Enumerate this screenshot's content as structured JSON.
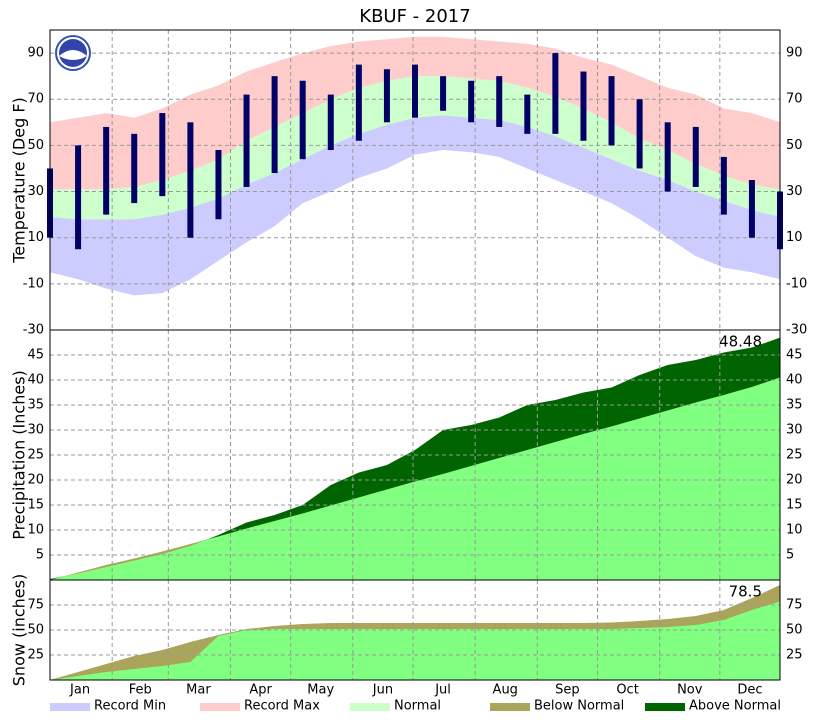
{
  "chart_data": [
    {
      "type": "range",
      "title": "KBUF - 2017",
      "ylabel": "Temperature (Deg F)",
      "x": [
        1,
        15,
        29,
        43,
        57,
        71,
        85,
        99,
        113,
        127,
        141,
        155,
        169,
        183,
        197,
        211,
        225,
        239,
        253,
        267,
        281,
        295,
        309,
        323,
        337,
        351,
        365
      ],
      "xlim": [
        1,
        365
      ],
      "x_gridlines": [
        32,
        60,
        91,
        121,
        152,
        182,
        213,
        244,
        274,
        305,
        335
      ],
      "record_max": [
        60,
        62,
        64,
        62,
        66,
        72,
        76,
        82,
        86,
        90,
        93,
        95,
        96,
        97,
        97,
        96,
        95,
        94,
        92,
        88,
        85,
        80,
        75,
        72,
        66,
        64,
        60
      ],
      "normal_high": [
        31,
        31,
        31,
        32,
        35,
        39,
        44,
        52,
        58,
        64,
        70,
        75,
        78,
        80,
        80,
        79,
        78,
        75,
        71,
        66,
        60,
        53,
        48,
        42,
        37,
        33,
        31
      ],
      "normal_low": [
        19,
        18,
        18,
        18,
        20,
        23,
        27,
        33,
        38,
        44,
        50,
        55,
        59,
        62,
        63,
        62,
        61,
        58,
        54,
        49,
        44,
        39,
        35,
        30,
        26,
        22,
        19
      ],
      "record_min": [
        -5,
        -8,
        -12,
        -15,
        -14,
        -8,
        0,
        8,
        15,
        25,
        30,
        36,
        40,
        46,
        48,
        47,
        45,
        40,
        35,
        30,
        25,
        18,
        10,
        2,
        -3,
        -5,
        -8
      ],
      "observed_high": [
        40,
        50,
        58,
        55,
        64,
        60,
        48,
        72,
        80,
        78,
        72,
        85,
        83,
        85,
        80,
        78,
        80,
        72,
        90,
        82,
        80,
        70,
        60,
        58,
        45,
        35,
        30
      ],
      "observed_low": [
        10,
        5,
        20,
        25,
        28,
        10,
        18,
        32,
        38,
        44,
        48,
        52,
        60,
        62,
        65,
        60,
        58,
        55,
        55,
        52,
        50,
        40,
        30,
        32,
        20,
        10,
        5
      ],
      "observed_color": "#000066",
      "ylim": [
        -30,
        100
      ],
      "yticks": [
        -30,
        -10,
        10,
        30,
        50,
        70,
        90
      ],
      "grid": true,
      "legend": [
        {
          "name": "Record Min",
          "color": "#ccccff"
        },
        {
          "name": "Record Max",
          "color": "#ffcccc"
        },
        {
          "name": "Normal",
          "color": "#ccffcc"
        },
        {
          "name": "Below Normal",
          "color": "#aaa55a"
        },
        {
          "name": "Above Normal",
          "color": "#006400"
        }
      ]
    },
    {
      "type": "area",
      "ylabel": "Precipitation (Inches)",
      "observed": [
        0.2,
        1.3,
        2.6,
        3.9,
        5.2,
        6.8,
        9,
        11.5,
        13,
        15,
        19,
        21.5,
        23,
        26,
        30,
        31,
        32.5,
        35,
        36,
        37.5,
        38.5,
        41,
        43,
        44,
        45.5,
        46.5,
        48.48
      ],
      "normal": [
        0,
        1.5,
        3,
        4.3,
        5.7,
        7.2,
        8.7,
        10.3,
        11.8,
        13.3,
        14.9,
        16.5,
        18.1,
        19.7,
        21.2,
        22.8,
        24.4,
        26,
        27.6,
        29.2,
        30.7,
        32.3,
        33.9,
        35.5,
        37,
        38.6,
        40.5
      ],
      "fill": "#80ff80",
      "ylim": [
        0,
        50
      ],
      "yticks": [
        5,
        10,
        15,
        20,
        25,
        30,
        35,
        40,
        45
      ],
      "grid": true
    },
    {
      "type": "area",
      "ylabel": "Snow (inches)",
      "observed": [
        0,
        4,
        8,
        11,
        14,
        18,
        44,
        50,
        51,
        51,
        51,
        51,
        51,
        51,
        51,
        51,
        51,
        51,
        51,
        51,
        51,
        52,
        53,
        55,
        60,
        70,
        78.5
      ],
      "normal": [
        0,
        8,
        16,
        24,
        30,
        38,
        45,
        51,
        54,
        56,
        57,
        57,
        57,
        57,
        57,
        57,
        57,
        57,
        57,
        57,
        57.5,
        59,
        61,
        64,
        70,
        82,
        95
      ],
      "fill": "#80ff80",
      "ylim": [
        0,
        100
      ],
      "yticks": [
        25,
        50,
        75
      ],
      "grid": true,
      "xticks": [
        {
          "value": 16,
          "label": "Jan"
        },
        {
          "value": 46,
          "label": "Feb"
        },
        {
          "value": 75,
          "label": "Mar"
        },
        {
          "value": 106,
          "label": "Apr"
        },
        {
          "value": 136,
          "label": "May"
        },
        {
          "value": 167,
          "label": "Jun"
        },
        {
          "value": 197,
          "label": "Jul"
        },
        {
          "value": 228,
          "label": "Aug"
        },
        {
          "value": 259,
          "label": "Sep"
        },
        {
          "value": 289,
          "label": "Oct"
        },
        {
          "value": 320,
          "label": "Nov"
        },
        {
          "value": 350,
          "label": "Dec"
        }
      ]
    }
  ]
}
